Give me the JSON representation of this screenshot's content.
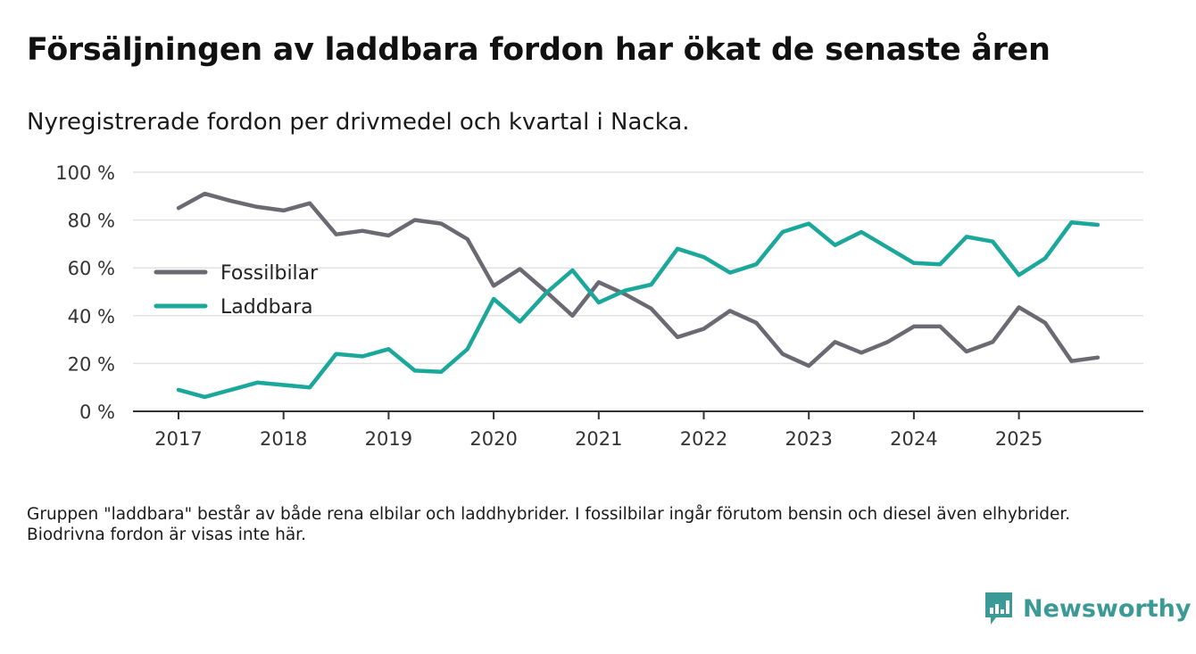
{
  "title": "Försäljningen av laddbara fordon har ökat de senaste åren",
  "subtitle": "Nyregistrerade fordon per drivmedel och kvartal i Nacka.",
  "footnote": "Gruppen \"laddbara\" består av både rena elbilar och laddhybrider. I fossilbilar ingår förutom bensin och diesel även elhybrider. Biodrivna fordon är visas inte här.",
  "brand": {
    "name": "Newsworthy",
    "icon": "newsworthy-logo-icon"
  },
  "chart_data": {
    "type": "line",
    "title": "Försäljningen av laddbara fordon har ökat de senaste åren",
    "xlabel": "",
    "ylabel": "",
    "ylim": [
      0,
      100
    ],
    "yticks": [
      0,
      20,
      40,
      60,
      80,
      100
    ],
    "ytick_labels": [
      "0 %",
      "20 %",
      "40 %",
      "60 %",
      "80 %",
      "100 %"
    ],
    "xticks": [
      2017,
      2018,
      2019,
      2020,
      2021,
      2022,
      2023,
      2024,
      2025
    ],
    "xtick_labels": [
      "2017",
      "2018",
      "2019",
      "2020",
      "2021",
      "2022",
      "2023",
      "2024",
      "2025"
    ],
    "xlim": [
      2016.6,
      2026.0
    ],
    "grid": true,
    "legend_position": "left-middle",
    "x": [
      2017.0,
      2017.25,
      2017.5,
      2017.75,
      2018.0,
      2018.25,
      2018.5,
      2018.75,
      2019.0,
      2019.25,
      2019.5,
      2019.75,
      2020.0,
      2020.25,
      2020.5,
      2020.75,
      2021.0,
      2021.25,
      2021.5,
      2021.75,
      2022.0,
      2022.25,
      2022.5,
      2022.75,
      2023.0,
      2023.25,
      2023.5,
      2023.75,
      2024.0,
      2024.25,
      2024.5,
      2024.75,
      2025.0,
      2025.25,
      2025.5,
      2025.75
    ],
    "series": [
      {
        "name": "Fossilbilar",
        "color": "#6b6a73",
        "values": [
          85,
          91,
          88,
          85.5,
          84,
          87,
          74,
          75.5,
          73.5,
          80,
          78.5,
          72,
          52.5,
          59.5,
          50,
          40,
          54,
          49,
          43,
          31,
          34.5,
          42,
          37,
          24,
          19,
          29,
          24.5,
          29,
          35.5,
          35.5,
          25,
          29,
          43.5,
          37,
          21,
          22.5
        ]
      },
      {
        "name": "Laddbara",
        "color": "#1ba89b",
        "values": [
          9,
          6,
          9,
          12,
          11,
          10,
          24,
          23,
          26,
          17,
          16.5,
          26,
          47,
          37.5,
          49.5,
          59,
          45.5,
          50.5,
          53,
          68,
          64.5,
          58,
          61.5,
          75,
          78.5,
          69.5,
          75,
          68.5,
          62,
          61.5,
          73,
          71,
          57,
          64,
          79,
          78
        ]
      }
    ]
  }
}
